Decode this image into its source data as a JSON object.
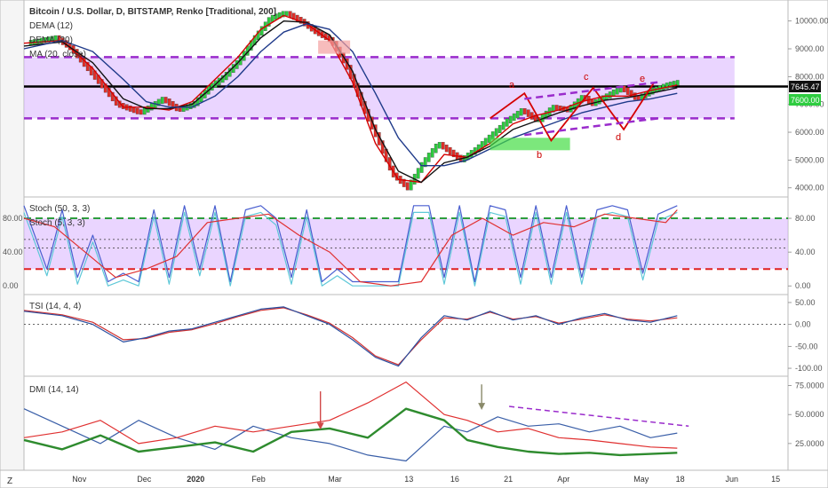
{
  "header": {
    "title": "Bitcoin / U.S. Dollar, D, BITSTAMP, Renko [Traditional, 200]",
    "indicator_labels": [
      "DEMA (12)",
      "DEMA (20)",
      "MA (20, close)"
    ]
  },
  "price_badges": {
    "current": "7645.47",
    "level": "7600.00"
  },
  "wave_labels": [
    "a",
    "b",
    "c",
    "d",
    "e"
  ],
  "colors": {
    "up_brick": "#2ecc40",
    "down_brick": "#e0302a",
    "dema_red": "#d40000",
    "dema_black": "#111111",
    "ma_navy": "#1f3a8a",
    "channel_fill": "#d9b3ff",
    "channel_dash": "#9a2ccc",
    "stoch_slow": "#e03030",
    "stoch_fast_k": "#4a5fd0",
    "stoch_fast_d": "#5ec8d8",
    "green_dash": "#2e9e3e",
    "red_dash": "#e02020",
    "adx_green": "#2e8b2e",
    "di_minus": "#e03030",
    "di_plus": "#3a5fa8",
    "tsi_red": "#d03030",
    "tsi_blue": "#2a4fa0",
    "annotation_arrow": "#d04848",
    "gray_arrow": "#8a8a6a"
  },
  "bottom_corner": "Z",
  "chart_data": [
    {
      "type": "line",
      "panel": "price",
      "title": "Bitcoin / U.S. Dollar, D, BITSTAMP, Renko [Traditional, 200]",
      "y_ticks": [
        "10000.00",
        "9000.00",
        "8000.00",
        "7000.00",
        "6000.00",
        "5000.00",
        "4000.00"
      ],
      "ylim": [
        3800,
        10500
      ],
      "x_ticks": [
        "Nov",
        "Dec",
        "2020",
        "Feb",
        "Mar",
        "13",
        "16",
        "21",
        "Apr",
        "May",
        "18",
        "Jun",
        "15"
      ],
      "series": [
        {
          "name": "Renko close",
          "x": [
            0.0,
            0.04,
            0.06,
            0.09,
            0.12,
            0.15,
            0.18,
            0.2,
            0.22,
            0.24,
            0.26,
            0.28,
            0.3,
            0.32,
            0.34,
            0.36,
            0.38,
            0.4,
            0.42,
            0.44,
            0.46,
            0.48,
            0.5,
            0.52,
            0.54,
            0.56,
            0.57,
            0.59,
            0.61,
            0.63,
            0.65,
            0.67,
            0.69,
            0.71,
            0.73,
            0.74,
            0.76,
            0.78,
            0.8,
            0.82,
            0.84,
            0.855
          ],
          "values": [
            9200,
            9400,
            9000,
            8000,
            7000,
            6700,
            7200,
            6800,
            7000,
            7600,
            8000,
            8600,
            9400,
            10100,
            10300,
            10000,
            9600,
            9300,
            8400,
            7000,
            5800,
            4500,
            4000,
            4900,
            5600,
            5200,
            5000,
            5400,
            5900,
            6400,
            6800,
            6400,
            6900,
            6800,
            7300,
            7000,
            7300,
            7600,
            7200,
            7500,
            7700,
            7800
          ]
        },
        {
          "name": "DEMA (12)",
          "x": [
            0.0,
            0.05,
            0.09,
            0.13,
            0.16,
            0.19,
            0.22,
            0.25,
            0.28,
            0.31,
            0.34,
            0.37,
            0.4,
            0.43,
            0.46,
            0.49,
            0.52,
            0.55,
            0.58,
            0.61,
            0.64,
            0.67,
            0.7,
            0.73,
            0.76,
            0.79,
            0.82,
            0.855
          ],
          "values": [
            9200,
            9300,
            8300,
            6900,
            6900,
            6800,
            7100,
            7900,
            8700,
            9700,
            10200,
            9900,
            9300,
            7800,
            5600,
            4300,
            4200,
            5200,
            5100,
            5600,
            6300,
            6600,
            6800,
            7100,
            7300,
            7300,
            7500,
            7700
          ]
        },
        {
          "name": "DEMA (20)",
          "x": [
            0.0,
            0.05,
            0.09,
            0.13,
            0.16,
            0.19,
            0.22,
            0.25,
            0.28,
            0.31,
            0.34,
            0.37,
            0.4,
            0.43,
            0.46,
            0.49,
            0.52,
            0.55,
            0.58,
            0.61,
            0.64,
            0.67,
            0.7,
            0.73,
            0.76,
            0.79,
            0.82,
            0.855
          ],
          "values": [
            9100,
            9250,
            8500,
            7200,
            6850,
            6850,
            7000,
            7700,
            8500,
            9400,
            10000,
            9950,
            9500,
            8200,
            6100,
            4600,
            4200,
            4900,
            5100,
            5500,
            6100,
            6400,
            6700,
            6950,
            7150,
            7250,
            7400,
            7600
          ]
        },
        {
          "name": "MA (20, close)",
          "x": [
            0.0,
            0.05,
            0.09,
            0.13,
            0.16,
            0.19,
            0.22,
            0.25,
            0.28,
            0.31,
            0.34,
            0.37,
            0.4,
            0.43,
            0.46,
            0.49,
            0.52,
            0.55,
            0.58,
            0.61,
            0.64,
            0.67,
            0.7,
            0.73,
            0.76,
            0.79,
            0.82,
            0.855
          ],
          "values": [
            9000,
            9300,
            8900,
            7900,
            7100,
            6900,
            6900,
            7300,
            8000,
            8900,
            9600,
            9900,
            9700,
            8900,
            7400,
            5800,
            4800,
            4800,
            5000,
            5400,
            5800,
            6100,
            6400,
            6700,
            6900,
            7100,
            7200,
            7400
          ]
        }
      ],
      "channel": {
        "upper": 8700,
        "lower": 6500,
        "mid": 7645.47
      },
      "annotations": [
        "a",
        "b",
        "c",
        "d",
        "e"
      ]
    },
    {
      "type": "line",
      "panel": "stoch",
      "title": "Stoch (50, 3, 3)",
      "subtitle": "Stoch (5, 3, 3)",
      "y_ticks": [
        "80.00",
        "40.00",
        "0.00"
      ],
      "ylim": [
        -5,
        100
      ],
      "levels": {
        "upper": 80,
        "lower": 20
      },
      "series": [
        {
          "name": "Stoch (5, 3, 3)",
          "x": [
            0.0,
            0.03,
            0.05,
            0.07,
            0.09,
            0.11,
            0.13,
            0.15,
            0.17,
            0.19,
            0.21,
            0.23,
            0.25,
            0.27,
            0.29,
            0.31,
            0.33,
            0.35,
            0.37,
            0.39,
            0.41,
            0.43,
            0.45,
            0.47,
            0.49,
            0.51,
            0.53,
            0.55,
            0.57,
            0.59,
            0.61,
            0.63,
            0.65,
            0.67,
            0.69,
            0.71,
            0.73,
            0.75,
            0.77,
            0.79,
            0.81,
            0.83,
            0.855
          ],
          "values": [
            95,
            20,
            90,
            10,
            60,
            5,
            15,
            5,
            90,
            10,
            95,
            20,
            95,
            5,
            90,
            95,
            80,
            10,
            90,
            5,
            20,
            5,
            5,
            5,
            5,
            95,
            95,
            10,
            95,
            5,
            95,
            90,
            10,
            95,
            10,
            95,
            10,
            90,
            95,
            90,
            15,
            85,
            95
          ]
        },
        {
          "name": "Stoch (50, 3, 3)",
          "x": [
            0.0,
            0.04,
            0.08,
            0.12,
            0.16,
            0.2,
            0.24,
            0.28,
            0.32,
            0.36,
            0.4,
            0.44,
            0.48,
            0.52,
            0.56,
            0.6,
            0.64,
            0.68,
            0.72,
            0.76,
            0.8,
            0.84,
            0.855
          ],
          "values": [
            80,
            70,
            40,
            10,
            20,
            35,
            75,
            80,
            85,
            60,
            40,
            5,
            0,
            5,
            60,
            80,
            60,
            75,
            70,
            85,
            80,
            75,
            90
          ]
        }
      ]
    },
    {
      "type": "line",
      "panel": "tsi",
      "title": "TSI (14, 4, 4)",
      "y_ticks": [
        "50.00",
        "0.00",
        "-50.00",
        "-100.00"
      ],
      "ylim": [
        -110,
        60
      ],
      "series": [
        {
          "name": "TSI",
          "x": [
            0.0,
            0.05,
            0.09,
            0.13,
            0.16,
            0.19,
            0.22,
            0.25,
            0.28,
            0.31,
            0.34,
            0.37,
            0.4,
            0.43,
            0.46,
            0.49,
            0.52,
            0.55,
            0.58,
            0.61,
            0.64,
            0.67,
            0.7,
            0.73,
            0.76,
            0.79,
            0.82,
            0.855
          ],
          "values": [
            30,
            20,
            0,
            -40,
            -30,
            -15,
            -10,
            5,
            20,
            35,
            40,
            20,
            0,
            -35,
            -75,
            -95,
            -30,
            20,
            10,
            30,
            10,
            20,
            0,
            15,
            25,
            10,
            5,
            20
          ]
        },
        {
          "name": "Signal",
          "x": [
            0.0,
            0.05,
            0.09,
            0.13,
            0.16,
            0.19,
            0.22,
            0.25,
            0.28,
            0.31,
            0.34,
            0.37,
            0.4,
            0.43,
            0.46,
            0.49,
            0.52,
            0.55,
            0.58,
            0.61,
            0.64,
            0.67,
            0.7,
            0.73,
            0.76,
            0.79,
            0.82,
            0.855
          ],
          "values": [
            32,
            22,
            5,
            -35,
            -32,
            -18,
            -12,
            2,
            18,
            32,
            38,
            22,
            3,
            -30,
            -72,
            -92,
            -35,
            15,
            12,
            28,
            12,
            18,
            3,
            12,
            22,
            12,
            8,
            15
          ]
        }
      ]
    },
    {
      "type": "line",
      "panel": "dmi",
      "title": "DMI (14, 14)",
      "y_ticks": [
        "75.0000",
        "50.0000",
        "25.0000"
      ],
      "ylim": [
        5,
        80
      ],
      "series": [
        {
          "name": "ADX",
          "x": [
            0.0,
            0.05,
            0.1,
            0.15,
            0.2,
            0.25,
            0.3,
            0.35,
            0.4,
            0.45,
            0.5,
            0.55,
            0.58,
            0.62,
            0.66,
            0.7,
            0.74,
            0.78,
            0.82,
            0.855
          ],
          "values": [
            28,
            20,
            32,
            18,
            22,
            26,
            18,
            35,
            38,
            30,
            55,
            45,
            28,
            22,
            18,
            16,
            17,
            15,
            16,
            17
          ]
        },
        {
          "name": "DI-",
          "x": [
            0.0,
            0.05,
            0.1,
            0.15,
            0.2,
            0.25,
            0.3,
            0.35,
            0.4,
            0.45,
            0.5,
            0.55,
            0.58,
            0.62,
            0.66,
            0.7,
            0.74,
            0.78,
            0.82,
            0.855
          ],
          "values": [
            30,
            35,
            45,
            25,
            30,
            40,
            35,
            40,
            45,
            60,
            78,
            50,
            45,
            35,
            38,
            30,
            28,
            25,
            22,
            21
          ]
        },
        {
          "name": "DI+",
          "x": [
            0.0,
            0.05,
            0.1,
            0.15,
            0.2,
            0.25,
            0.3,
            0.35,
            0.4,
            0.45,
            0.5,
            0.55,
            0.58,
            0.62,
            0.66,
            0.7,
            0.74,
            0.78,
            0.82,
            0.855
          ],
          "values": [
            55,
            40,
            25,
            45,
            30,
            20,
            40,
            30,
            25,
            15,
            10,
            40,
            35,
            48,
            40,
            42,
            35,
            40,
            30,
            34
          ]
        }
      ]
    }
  ]
}
